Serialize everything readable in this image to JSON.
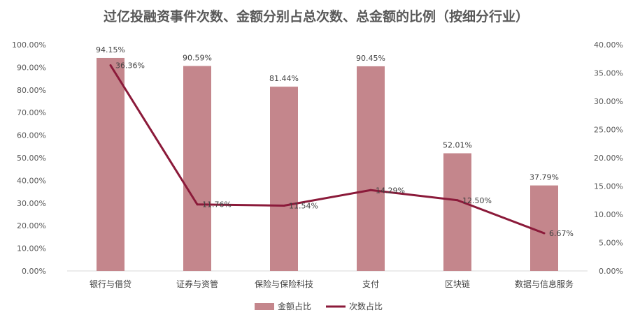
{
  "chart_data": {
    "type": "bar",
    "title": "过亿投融资事件次数、金额分别占总次数、总金额的比例（按细分行业）",
    "categories": [
      "银行与借贷",
      "证券与资管",
      "保险与保险科技",
      "支付",
      "区块链",
      "数据与信息服务"
    ],
    "series": [
      {
        "name": "金额占比",
        "type": "bar",
        "axis": "left",
        "color": "#C4868C",
        "values": [
          94.15,
          90.59,
          81.44,
          90.45,
          52.01,
          37.79
        ],
        "labels": [
          "94.15%",
          "90.59%",
          "81.44%",
          "90.45%",
          "52.01%",
          "37.79%"
        ]
      },
      {
        "name": "次数占比",
        "type": "line",
        "axis": "right",
        "color": "#8B1A3A",
        "values": [
          36.36,
          11.76,
          11.54,
          14.29,
          12.5,
          6.67
        ],
        "labels": [
          "36.36%",
          "11.76%",
          "11.54%",
          "14.29%",
          "12.50%",
          "6.67%"
        ]
      }
    ],
    "y_left": {
      "min": 0,
      "max": 100,
      "ticks": [
        "0.00%",
        "10.00%",
        "20.00%",
        "30.00%",
        "40.00%",
        "50.00%",
        "60.00%",
        "70.00%",
        "80.00%",
        "90.00%",
        "100.00%"
      ]
    },
    "y_right": {
      "min": 0,
      "max": 40,
      "ticks": [
        "0.00%",
        "5.00%",
        "10.00%",
        "15.00%",
        "20.00%",
        "25.00%",
        "30.00%",
        "35.00%",
        "40.00%"
      ]
    },
    "grid": false,
    "legend": "bottom-center"
  }
}
